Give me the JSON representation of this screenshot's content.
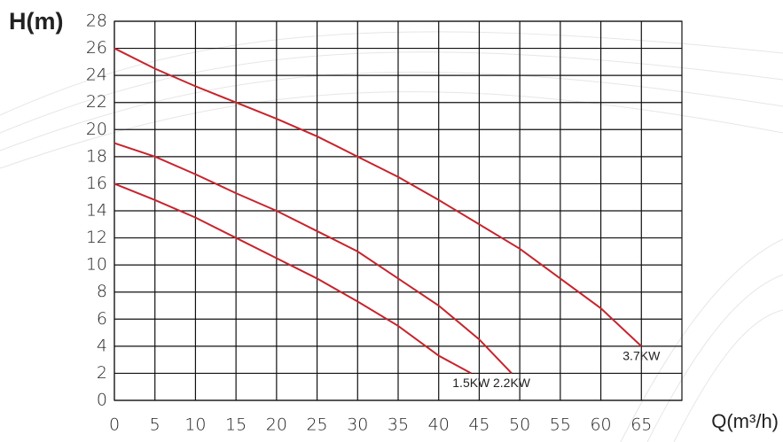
{
  "chart_data": {
    "type": "line",
    "y_label": "H(m)",
    "x_label": "Q(m³/h)",
    "xlim": [
      0,
      70
    ],
    "ylim": [
      0,
      28
    ],
    "xticks": [
      0,
      5,
      10,
      15,
      20,
      25,
      30,
      35,
      40,
      45,
      50,
      55,
      60,
      65
    ],
    "yticks": [
      0,
      2,
      4,
      6,
      8,
      10,
      12,
      14,
      16,
      18,
      20,
      22,
      24,
      26,
      28
    ],
    "grid": true,
    "series": [
      {
        "name": "1.5KW",
        "color": "#c8232c",
        "x": [
          0,
          5,
          10,
          15,
          20,
          25,
          30,
          35,
          40,
          44
        ],
        "values": [
          16,
          14.8,
          13.5,
          12,
          10.5,
          9,
          7.3,
          5.5,
          3.3,
          2
        ]
      },
      {
        "name": "2.2KW",
        "color": "#c8232c",
        "x": [
          0,
          5,
          10,
          15,
          20,
          25,
          30,
          33,
          35,
          40,
          45,
          49
        ],
        "values": [
          19,
          18,
          16.7,
          15.3,
          14,
          12.5,
          11,
          9.8,
          9,
          7,
          4.5,
          2
        ]
      },
      {
        "name": "3.7KW",
        "color": "#c8232c",
        "x": [
          0,
          5,
          10,
          15,
          20,
          25,
          30,
          35,
          40,
          45,
          50,
          55,
          60,
          65
        ],
        "values": [
          26,
          24.5,
          23.2,
          22,
          20.8,
          19.5,
          18,
          16.5,
          14.8,
          13,
          11.2,
          9,
          6.8,
          4
        ]
      }
    ]
  }
}
